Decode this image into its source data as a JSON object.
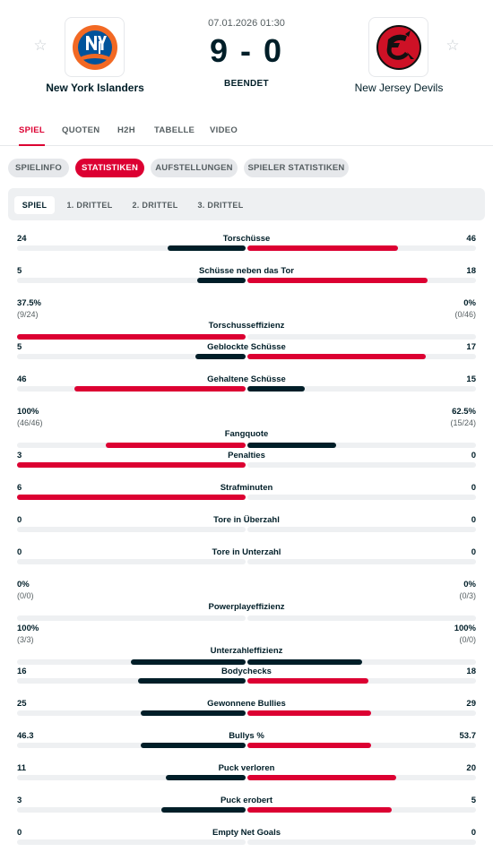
{
  "match": {
    "datetime": "07.01.2026 01:30",
    "score": "9 - 0",
    "status": "BEENDET",
    "home": {
      "name": "New York Islanders"
    },
    "away": {
      "name": "New Jersey Devils"
    }
  },
  "main_tabs": [
    {
      "label": "SPIEL",
      "active": true
    },
    {
      "label": "QUOTEN",
      "active": false
    },
    {
      "label": "H2H",
      "active": false
    },
    {
      "label": "TABELLE",
      "active": false
    },
    {
      "label": "VIDEO",
      "active": false
    }
  ],
  "sub_tabs": [
    {
      "label": "SPIELINFO",
      "active": false
    },
    {
      "label": "STATISTIKEN",
      "active": true
    },
    {
      "label": "AUFSTELLUNGEN",
      "active": false
    },
    {
      "label": "SPIELER STATISTIKEN",
      "active": false
    }
  ],
  "period_tabs": [
    {
      "label": "SPIEL",
      "active": true
    },
    {
      "label": "1. DRITTEL",
      "active": false
    },
    {
      "label": "2. DRITTEL",
      "active": false
    },
    {
      "label": "3. DRITTEL",
      "active": false
    }
  ],
  "colors": {
    "accent": "#dc0032",
    "dark": "#001e28",
    "track": "#eef0f2"
  },
  "stats": [
    {
      "name": "Torschüsse",
      "home": "24",
      "away": "46",
      "home_ratio": 0.34,
      "away_ratio": 0.66,
      "home_leads": false
    },
    {
      "name": "Schüsse neben das Tor",
      "home": "5",
      "away": "18",
      "home_ratio": 0.21,
      "away_ratio": 0.79,
      "home_leads": false
    },
    {
      "name": "Torschusseffizienz",
      "home": "37.5%",
      "away": "0%",
      "home_sub": "(9/24)",
      "away_sub": "(0/46)",
      "home_ratio": 1.0,
      "away_ratio": 0.0,
      "home_leads": true
    },
    {
      "name": "Geblockte Schüsse",
      "home": "5",
      "away": "17",
      "home_ratio": 0.22,
      "away_ratio": 0.78,
      "home_leads": false
    },
    {
      "name": "Gehaltene Schüsse",
      "home": "46",
      "away": "15",
      "home_ratio": 0.75,
      "away_ratio": 0.25,
      "home_leads": true
    },
    {
      "name": "Fangquote",
      "home": "100%",
      "away": "62.5%",
      "home_sub": "(46/46)",
      "away_sub": "(15/24)",
      "home_ratio": 0.61,
      "away_ratio": 0.39,
      "home_leads": true
    },
    {
      "name": "Penalties",
      "home": "3",
      "away": "0",
      "home_ratio": 1.0,
      "away_ratio": 0.0,
      "home_leads": true
    },
    {
      "name": "Strafminuten",
      "home": "6",
      "away": "0",
      "home_ratio": 1.0,
      "away_ratio": 0.0,
      "home_leads": true
    },
    {
      "name": "Tore in Überzahl",
      "home": "0",
      "away": "0",
      "home_ratio": 0.0,
      "away_ratio": 0.0,
      "home_leads": false
    },
    {
      "name": "Tore in Unterzahl",
      "home": "0",
      "away": "0",
      "home_ratio": 0.0,
      "away_ratio": 0.0,
      "home_leads": false
    },
    {
      "name": "Powerplayeffizienz",
      "home": "0%",
      "away": "0%",
      "home_sub": "(0/0)",
      "away_sub": "(0/3)",
      "home_ratio": 0.0,
      "away_ratio": 0.0,
      "home_leads": false
    },
    {
      "name": "Unterzahleffizienz",
      "home": "100%",
      "away": "100%",
      "home_sub": "(3/3)",
      "away_sub": "(0/0)",
      "home_ratio": 0.5,
      "away_ratio": 0.5,
      "home_leads": false
    },
    {
      "name": "Bodychecks",
      "home": "16",
      "away": "18",
      "home_ratio": 0.47,
      "away_ratio": 0.53,
      "home_leads": false
    },
    {
      "name": "Gewonnene Bullies",
      "home": "25",
      "away": "29",
      "home_ratio": 0.46,
      "away_ratio": 0.54,
      "home_leads": false
    },
    {
      "name": "Bullys %",
      "home": "46.3",
      "away": "53.7",
      "home_ratio": 0.46,
      "away_ratio": 0.54,
      "home_leads": false
    },
    {
      "name": "Puck verloren",
      "home": "11",
      "away": "20",
      "home_ratio": 0.35,
      "away_ratio": 0.65,
      "home_leads": false
    },
    {
      "name": "Puck erobert",
      "home": "3",
      "away": "5",
      "home_ratio": 0.37,
      "away_ratio": 0.63,
      "home_leads": false
    },
    {
      "name": "Empty Net Goals",
      "home": "0",
      "away": "0",
      "home_ratio": 0.0,
      "away_ratio": 0.0,
      "home_leads": false
    }
  ]
}
